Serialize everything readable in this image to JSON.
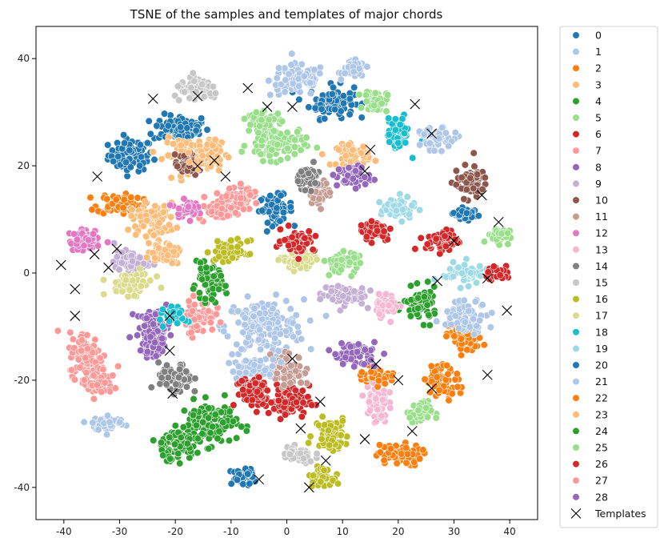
{
  "chart_data": {
    "type": "scatter",
    "title": "TSNE of the samples and templates of major chords",
    "xlabel": "",
    "ylabel": "",
    "xlim": [
      -45,
      45
    ],
    "ylim": [
      -46,
      46
    ],
    "xticks": [
      -40,
      -30,
      -20,
      -10,
      0,
      10,
      20,
      30,
      40
    ],
    "yticks": [
      -40,
      -20,
      0,
      20,
      40
    ],
    "grid": false,
    "legend_position": "outside-right",
    "series": [
      {
        "name": "0",
        "color": "#1f77b4",
        "clusters": [
          [
            -28,
            22,
            4,
            3
          ],
          [
            -19,
            27,
            5,
            2.5
          ],
          [
            8,
            32,
            4,
            3
          ],
          [
            -2,
            12,
            3,
            2.5
          ]
        ]
      },
      {
        "name": "1",
        "color": "#aec7e8",
        "clusters": [
          [
            2,
            36,
            5,
            3
          ],
          [
            12,
            38,
            2,
            1.5
          ],
          [
            -4,
            -10,
            7,
            5
          ],
          [
            -32,
            -28,
            3,
            1.5
          ]
        ]
      },
      {
        "name": "2",
        "color": "#ff7f0e",
        "clusters": [
          [
            -30,
            13,
            4,
            2
          ],
          [
            20,
            -34,
            4,
            2
          ],
          [
            32,
            -12,
            3,
            3
          ]
        ]
      },
      {
        "name": "3",
        "color": "#ffbb78",
        "clusters": [
          [
            -24,
            10,
            4,
            3
          ],
          [
            -18,
            22,
            4,
            3
          ],
          [
            12,
            22,
            3,
            2
          ]
        ]
      },
      {
        "name": "4",
        "color": "#2ca02c",
        "clusters": [
          [
            -14,
            -28,
            5,
            4
          ],
          [
            24,
            -6,
            3,
            3
          ]
        ]
      },
      {
        "name": "5",
        "color": "#98df8a",
        "clusters": [
          [
            -2,
            24,
            5,
            3
          ],
          [
            16,
            32,
            2,
            2
          ],
          [
            38,
            7,
            2,
            1.5
          ],
          [
            24,
            -26,
            2,
            2
          ]
        ]
      },
      {
        "name": "6",
        "color": "#d62728",
        "clusters": [
          [
            0,
            -24,
            4,
            3
          ],
          [
            28,
            6,
            3,
            2
          ],
          [
            16,
            8,
            3,
            2
          ]
        ]
      },
      {
        "name": "7",
        "color": "#ff9896",
        "clusters": [
          [
            -36,
            -15,
            3,
            4
          ],
          [
            -16,
            -8,
            3,
            3
          ],
          [
            -12,
            12,
            4,
            2
          ]
        ]
      },
      {
        "name": "8",
        "color": "#9467bd",
        "clusters": [
          [
            -24,
            -10,
            3,
            3
          ],
          [
            12,
            18,
            3,
            2
          ]
        ]
      },
      {
        "name": "9",
        "color": "#c5b0d5",
        "clusters": [
          [
            -28,
            2,
            3,
            2
          ],
          [
            10,
            -4,
            4,
            2
          ]
        ]
      },
      {
        "name": "10",
        "color": "#8c564b",
        "clusters": [
          [
            33,
            17,
            3,
            3
          ],
          [
            -18,
            20,
            2,
            2
          ]
        ]
      },
      {
        "name": "11",
        "color": "#c49c94",
        "clusters": [
          [
            0,
            -18,
            3,
            3
          ],
          [
            6,
            15,
            2,
            2
          ]
        ]
      },
      {
        "name": "12",
        "color": "#e377c2",
        "clusters": [
          [
            -36,
            6,
            3,
            2
          ],
          [
            -18,
            12,
            2,
            1.5
          ]
        ]
      },
      {
        "name": "13",
        "color": "#f7b6d2",
        "clusters": [
          [
            16,
            -24,
            2,
            4
          ],
          [
            18,
            -6,
            2,
            2
          ]
        ]
      },
      {
        "name": "14",
        "color": "#7f7f7f",
        "clusters": [
          [
            -20,
            -20,
            3,
            3
          ],
          [
            4,
            18,
            2,
            2
          ]
        ]
      },
      {
        "name": "15",
        "color": "#c7c7c7",
        "clusters": [
          [
            -16,
            34,
            4,
            2
          ],
          [
            2,
            -34,
            3,
            1.5
          ]
        ]
      },
      {
        "name": "16",
        "color": "#bcbd22",
        "clusters": [
          [
            8,
            -30,
            3,
            3
          ],
          [
            6,
            -38,
            2,
            1.5
          ],
          [
            -10,
            4,
            3,
            2
          ]
        ]
      },
      {
        "name": "17",
        "color": "#dbdb8d",
        "clusters": [
          [
            -28,
            -2,
            4,
            2
          ],
          [
            2,
            2,
            3,
            2
          ]
        ]
      },
      {
        "name": "18",
        "color": "#17becf",
        "clusters": [
          [
            20,
            26,
            2,
            3
          ],
          [
            -20,
            -8,
            2,
            1.5
          ]
        ]
      },
      {
        "name": "19",
        "color": "#9edae5",
        "clusters": [
          [
            32,
            0,
            4,
            2
          ],
          [
            20,
            12,
            3,
            2
          ]
        ]
      },
      {
        "name": "20",
        "color": "#1f77b4",
        "clusters": [
          [
            -8,
            -38,
            2,
            1.5
          ],
          [
            32,
            11,
            2,
            1
          ]
        ]
      },
      {
        "name": "21",
        "color": "#aec7e8",
        "clusters": [
          [
            27,
            25,
            3,
            2
          ],
          [
            32,
            -8,
            4,
            3
          ],
          [
            -6,
            -18,
            4,
            2
          ]
        ]
      },
      {
        "name": "22",
        "color": "#ff7f0e",
        "clusters": [
          [
            28,
            -20,
            3,
            3
          ],
          [
            16,
            -19,
            3,
            1.5
          ]
        ]
      },
      {
        "name": "23",
        "color": "#ffbb78",
        "clusters": [
          [
            -14,
            22,
            3,
            3
          ],
          [
            -22,
            4,
            3,
            2
          ]
        ]
      },
      {
        "name": "24",
        "color": "#2ca02c",
        "clusters": [
          [
            -20,
            -32,
            4,
            3
          ],
          [
            -14,
            -2,
            3,
            3
          ]
        ]
      },
      {
        "name": "25",
        "color": "#98df8a",
        "clusters": [
          [
            10,
            2,
            3,
            2
          ],
          [
            -4,
            28,
            3,
            2
          ]
        ]
      },
      {
        "name": "26",
        "color": "#d62728",
        "clusters": [
          [
            -6,
            -22,
            3,
            3
          ],
          [
            2,
            6,
            3,
            2
          ],
          [
            38,
            0,
            2,
            1.5
          ]
        ]
      },
      {
        "name": "27",
        "color": "#ff9896",
        "clusters": [
          [
            -34,
            -20,
            3,
            3
          ],
          [
            -8,
            14,
            3,
            2
          ]
        ]
      },
      {
        "name": "28",
        "color": "#9467bd",
        "clusters": [
          [
            12,
            -15,
            4,
            2
          ],
          [
            -24,
            -14,
            2,
            2
          ]
        ]
      }
    ],
    "templates": {
      "name": "Templates",
      "marker": "x",
      "points": [
        [
          -24,
          32.5
        ],
        [
          -16,
          33
        ],
        [
          -7,
          34.5
        ],
        [
          -3.5,
          31
        ],
        [
          1,
          31
        ],
        [
          23,
          31.5
        ],
        [
          26,
          26
        ],
        [
          -34,
          18
        ],
        [
          -13,
          21
        ],
        [
          -16,
          20
        ],
        [
          -11,
          18
        ],
        [
          15,
          23
        ],
        [
          14,
          19
        ],
        [
          35,
          14.5
        ],
        [
          38,
          9.5
        ],
        [
          30,
          6
        ],
        [
          -40.5,
          1.5
        ],
        [
          -34.5,
          3.5
        ],
        [
          -30.5,
          4.5
        ],
        [
          -32,
          1
        ],
        [
          -38,
          -3
        ],
        [
          27,
          -1.5
        ],
        [
          36,
          -1
        ],
        [
          -38,
          -8
        ],
        [
          -21,
          -8
        ],
        [
          39.5,
          -7
        ],
        [
          -21,
          -14.5
        ],
        [
          1,
          -16
        ],
        [
          16,
          -17
        ],
        [
          -20.5,
          -22.5
        ],
        [
          20,
          -20
        ],
        [
          26,
          -21.5
        ],
        [
          36,
          -19
        ],
        [
          6,
          -24
        ],
        [
          2.5,
          -29
        ],
        [
          22.5,
          -29.5
        ],
        [
          14,
          -31
        ],
        [
          7,
          -35
        ],
        [
          -5,
          -38.5
        ],
        [
          4,
          -40
        ]
      ]
    }
  }
}
